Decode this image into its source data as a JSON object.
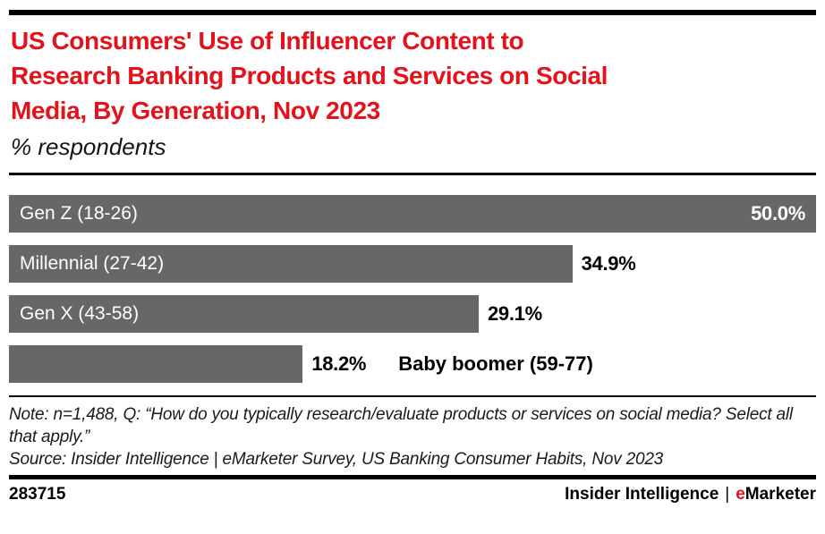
{
  "header": {
    "title_lines": [
      "US Consumers' Use of Influencer Content to",
      "Research Banking Products and Services on Social",
      "Media, By Generation, Nov 2023"
    ],
    "subtitle": "% respondents"
  },
  "chart_data": {
    "type": "bar",
    "orientation": "horizontal",
    "title": "US Consumers' Use of Influencer Content to Research Banking Products and Services on Social Media, By Generation, Nov 2023",
    "subtitle": "% respondents",
    "categories": [
      "Gen Z (18-26)",
      "Millennial (27-42)",
      "Gen X (43-58)",
      "Baby boomer (59-77)"
    ],
    "values": [
      50.0,
      34.9,
      29.1,
      18.2
    ],
    "value_labels": [
      "50.0%",
      "34.9%",
      "29.1%",
      "18.2%"
    ],
    "xlim": [
      0,
      50
    ],
    "unit": "% of respondents",
    "grid": false,
    "legend": false,
    "bar_color": "#676767",
    "category_label_placement": [
      "inside-left",
      "inside-left",
      "inside-left",
      "outside-right"
    ],
    "value_label_placement": [
      "inside-right",
      "outside-right",
      "outside-right",
      "outside-right"
    ]
  },
  "notes": {
    "note_line": "Note: n=1,488, Q: “How do you typically research/evaluate products or services on social media? Select all that apply.”",
    "source_line": "Source: Insider Intelligence | eMarketer Survey, US Banking Consumer Habits, Nov 2023"
  },
  "footer": {
    "chart_id": "283715",
    "brand_primary": "Insider Intelligence",
    "brand_separator": "|",
    "brand_e": "e",
    "brand_rest": "Marketer"
  },
  "colors": {
    "accent_red": "#e3121b",
    "bar_gray": "#676767",
    "text_color": "#111111"
  }
}
